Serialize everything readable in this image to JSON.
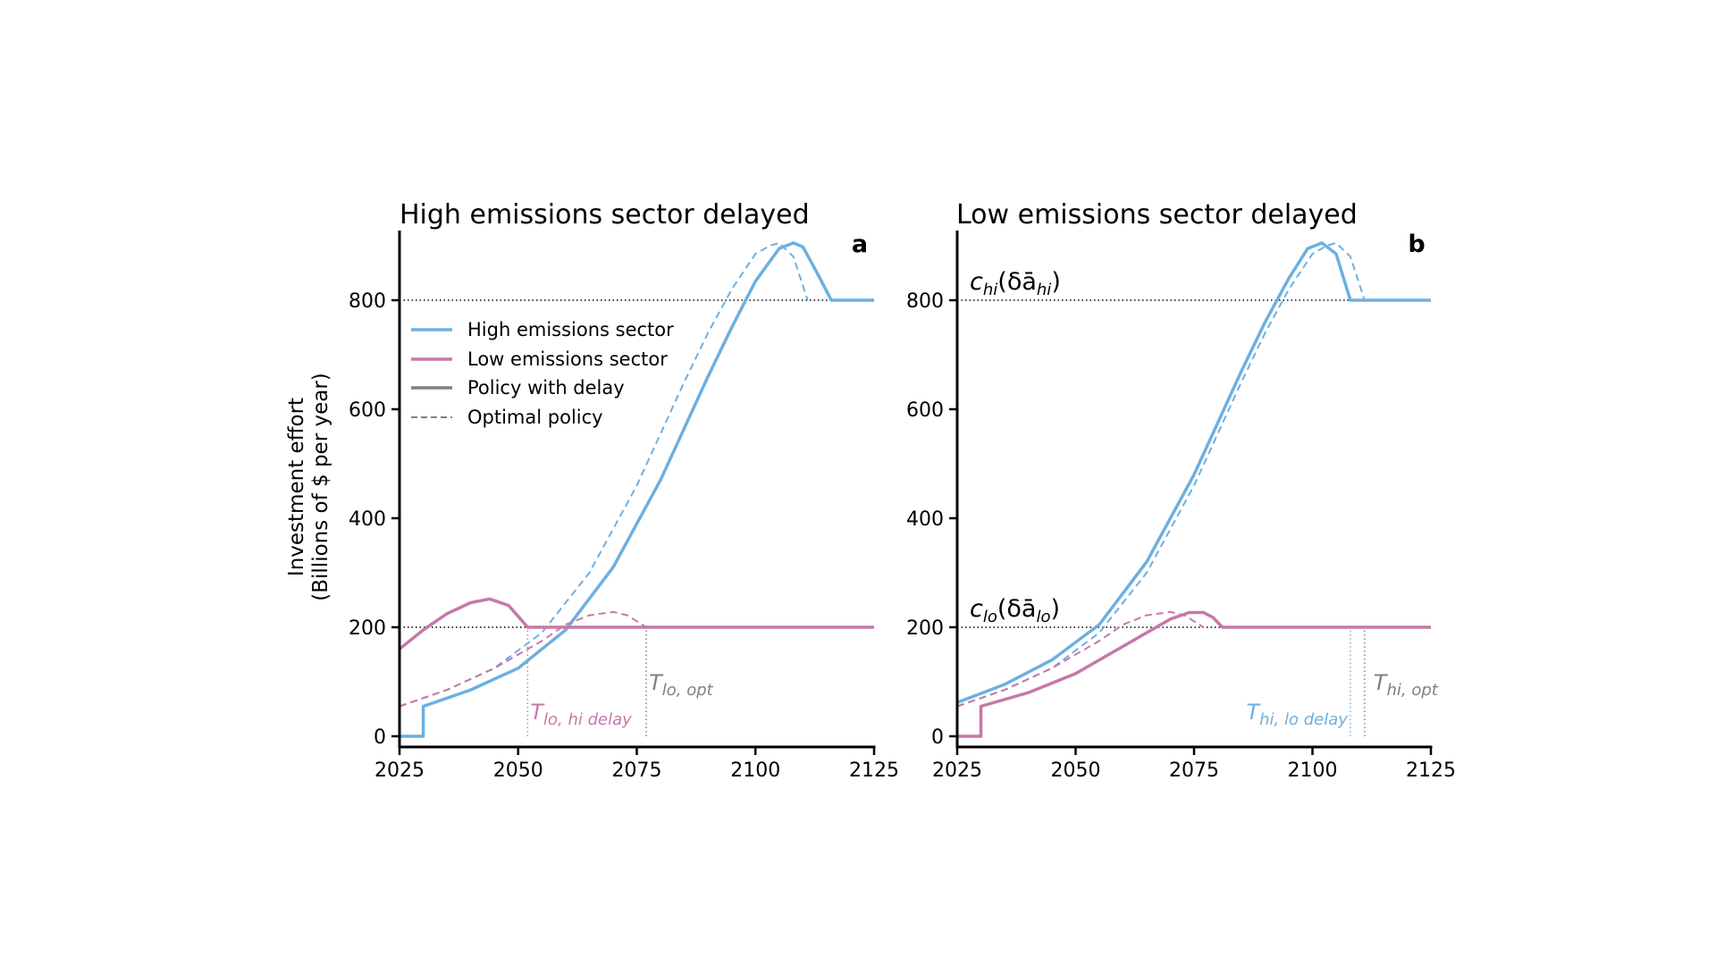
{
  "figure": {
    "ylabel_line1": "Investment effort",
    "ylabel_line2": "(Billions of $ per year)",
    "legend": {
      "high": "High emissions sector",
      "low": "Low emissions sector",
      "delay": "Policy with delay",
      "optimal": "Optimal policy"
    },
    "colors": {
      "high": "#6cb0e0",
      "low": "#c678a8",
      "neutral": "#808080"
    }
  },
  "chart_data": [
    {
      "type": "line",
      "panel": "a",
      "title": "High emissions sector delayed",
      "xlabel": "",
      "ylabel": "Investment effort (Billions of $ per year)",
      "xlim": [
        2025,
        2125
      ],
      "ylim": [
        -20,
        930
      ],
      "xticks": [
        2025,
        2050,
        2075,
        2100,
        2125
      ],
      "yticks": [
        0,
        200,
        400,
        600,
        800
      ],
      "reference_lines": [
        {
          "axis": "y",
          "value": 800,
          "style": "dotted"
        },
        {
          "axis": "y",
          "value": 200,
          "style": "dotted"
        },
        {
          "axis": "x",
          "value": 2052,
          "style": "dotted",
          "color": "low"
        },
        {
          "axis": "x",
          "value": 2077,
          "style": "dotted",
          "color": "neutral"
        }
      ],
      "annotations": [
        {
          "base": "T",
          "sub": "lo, hi delay",
          "x": 2052,
          "color": "low"
        },
        {
          "base": "T",
          "sub": "lo, opt",
          "x": 2077,
          "color": "neutral"
        }
      ],
      "series": [
        {
          "name": "High emissions sector",
          "policy": "Policy with delay",
          "color": "high",
          "style": "solid",
          "x": [
            2025,
            2030,
            2030,
            2040,
            2050,
            2060,
            2070,
            2080,
            2090,
            2095,
            2100,
            2105,
            2108,
            2110,
            2113,
            2116,
            2125
          ],
          "y": [
            0,
            0,
            55,
            85,
            125,
            195,
            310,
            470,
            660,
            750,
            835,
            895,
            905,
            898,
            850,
            800,
            800
          ]
        },
        {
          "name": "High emissions sector",
          "policy": "Optimal policy",
          "color": "high",
          "style": "dashed",
          "x": [
            2025,
            2035,
            2045,
            2055,
            2065,
            2075,
            2085,
            2090,
            2095,
            2100,
            2103,
            2105,
            2108,
            2111
          ],
          "y": [
            55,
            85,
            125,
            190,
            300,
            460,
            650,
            740,
            820,
            885,
            900,
            905,
            880,
            800
          ]
        },
        {
          "name": "Low emissions sector",
          "policy": "Policy with delay",
          "color": "low",
          "style": "solid",
          "x": [
            2025,
            2030,
            2035,
            2040,
            2044,
            2048,
            2050,
            2052,
            2125
          ],
          "y": [
            160,
            195,
            225,
            245,
            252,
            240,
            220,
            200,
            200
          ]
        },
        {
          "name": "Low emissions sector",
          "policy": "Optimal policy",
          "color": "low",
          "style": "dashed",
          "x": [
            2025,
            2035,
            2045,
            2055,
            2060,
            2065,
            2070,
            2073,
            2077
          ],
          "y": [
            55,
            85,
            125,
            175,
            205,
            222,
            228,
            222,
            200
          ]
        }
      ]
    },
    {
      "type": "line",
      "panel": "b",
      "title": "Low emissions sector delayed",
      "xlabel": "",
      "ylabel": "",
      "xlim": [
        2025,
        2125
      ],
      "ylim": [
        -20,
        930
      ],
      "xticks": [
        2025,
        2050,
        2075,
        2100,
        2125
      ],
      "yticks": [
        0,
        200,
        400,
        600,
        800
      ],
      "reference_lines": [
        {
          "axis": "y",
          "value": 800,
          "style": "dotted",
          "label_base": "c",
          "label_sub": "hi",
          "label_arg": "hi"
        },
        {
          "axis": "y",
          "value": 200,
          "style": "dotted",
          "label_base": "c",
          "label_sub": "lo",
          "label_arg": "lo"
        },
        {
          "axis": "x",
          "value": 2108,
          "style": "dotted",
          "color": "high"
        },
        {
          "axis": "x",
          "value": 2111,
          "style": "dotted",
          "color": "neutral"
        }
      ],
      "annotations": [
        {
          "base": "T",
          "sub": "hi, lo delay",
          "x": 2108,
          "color": "high"
        },
        {
          "base": "T",
          "sub": "hi, opt",
          "x": 2111,
          "color": "neutral"
        }
      ],
      "series": [
        {
          "name": "High emissions sector",
          "policy": "Policy with delay",
          "color": "high",
          "style": "solid",
          "x": [
            2025,
            2035,
            2045,
            2055,
            2065,
            2075,
            2085,
            2090,
            2095,
            2099,
            2102,
            2105,
            2108,
            2125
          ],
          "y": [
            62,
            95,
            140,
            205,
            320,
            480,
            670,
            760,
            840,
            895,
            905,
            885,
            800,
            800
          ]
        },
        {
          "name": "High emissions sector",
          "policy": "Optimal policy",
          "color": "high",
          "style": "dashed",
          "x": [
            2025,
            2035,
            2045,
            2055,
            2065,
            2075,
            2085,
            2090,
            2095,
            2100,
            2103,
            2105,
            2108,
            2111,
            2125
          ],
          "y": [
            55,
            85,
            125,
            190,
            300,
            460,
            650,
            740,
            820,
            885,
            900,
            905,
            880,
            800,
            800
          ]
        },
        {
          "name": "Low emissions sector",
          "policy": "Policy with delay",
          "color": "low",
          "style": "solid",
          "x": [
            2025,
            2030,
            2030,
            2040,
            2050,
            2060,
            2070,
            2074,
            2077,
            2079,
            2081,
            2125
          ],
          "y": [
            0,
            0,
            55,
            80,
            115,
            165,
            215,
            227,
            227,
            218,
            200,
            200
          ]
        },
        {
          "name": "Low emissions sector",
          "policy": "Optimal policy",
          "color": "low",
          "style": "dashed",
          "x": [
            2025,
            2035,
            2045,
            2055,
            2060,
            2065,
            2070,
            2073,
            2077
          ],
          "y": [
            55,
            85,
            125,
            175,
            205,
            222,
            228,
            222,
            200
          ]
        }
      ]
    }
  ]
}
